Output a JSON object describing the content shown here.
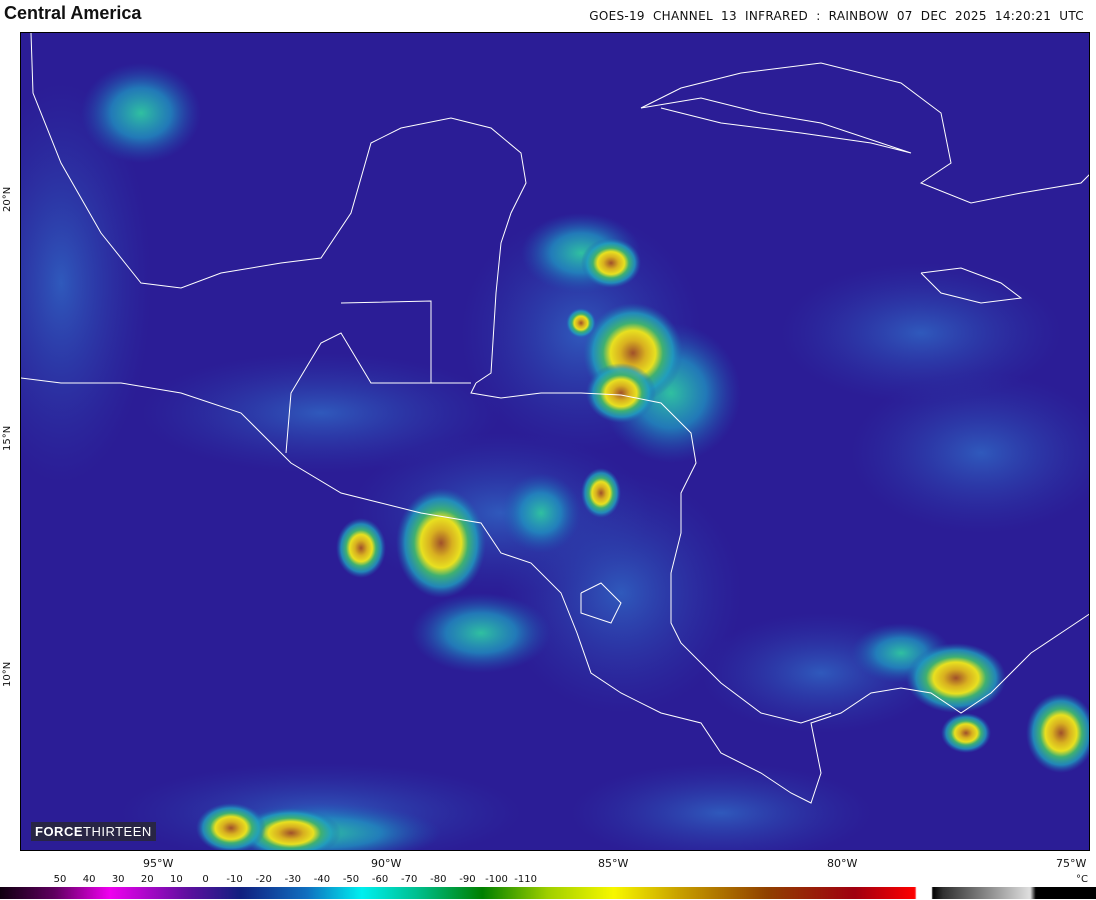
{
  "title": "Central America",
  "header": {
    "satellite": "GOES-19",
    "channel": "CHANNEL 13 INFRARED",
    "separator": ":",
    "palette": "RAINBOW",
    "date": "07 DEC 2025",
    "time": "14:20:21 UTC"
  },
  "map": {
    "lon_labels": [
      "95°W",
      "90°W",
      "85°W",
      "80°W",
      "75°W"
    ],
    "lat_labels": [
      "20°N",
      "15°N",
      "10°N"
    ],
    "coastline_color": "#ffffff",
    "background_color": "#2b1d96"
  },
  "logo": {
    "part1": "FORCE",
    "part2": "THIRTEEN"
  },
  "colorbar": {
    "unit": "°C",
    "labels": [
      "50",
      "40",
      "30",
      "20",
      "10",
      "0",
      "-10",
      "-20",
      "-30",
      "-40",
      "-50",
      "-60",
      "-70",
      "-80",
      "-90",
      "-100",
      "-110"
    ]
  }
}
